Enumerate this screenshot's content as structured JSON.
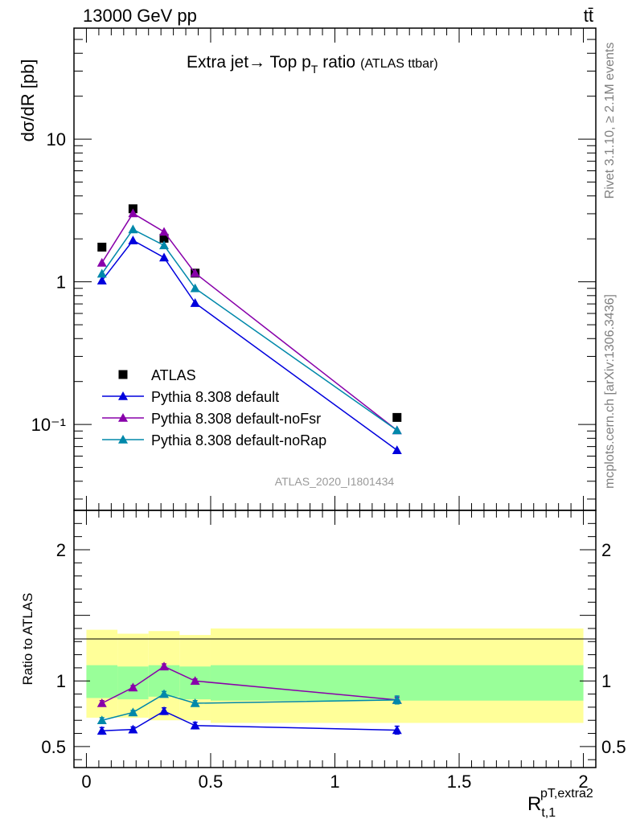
{
  "header": {
    "energy_label": "13000 GeV pp",
    "process_label": "tt̄"
  },
  "side_labels": {
    "rivet": "Rivet 3.1.10, ≥ 2.1M events",
    "mcplots": "mcplots.cern.ch [arXiv:1306.3436]"
  },
  "chart_data": [
    {
      "type": "line",
      "panel": "main",
      "title_main": "Extra jet→ Top p",
      "title_sub": "T",
      "title_after": " ratio",
      "title_small": "(ATLAS ttbar)",
      "ylabel": "dσ/dR [pb]",
      "y_scale": "log",
      "ylim": [
        0.025,
        60
      ],
      "xlim": [
        -0.05,
        2.05
      ],
      "y_ticks": [
        {
          "value": 10,
          "label": "10"
        },
        {
          "value": 1,
          "label": "1"
        },
        {
          "value": 0.1,
          "label": "10⁻¹"
        }
      ],
      "watermark": "ATLAS_2020_I1801434",
      "legend_position": "lower-left",
      "x": [
        0.0625,
        0.1875,
        0.3125,
        0.4375,
        1.25
      ],
      "series": [
        {
          "name": "ATLAS",
          "style": "square-markers",
          "color": "#000000",
          "values": [
            1.75,
            3.25,
            2.02,
            1.15,
            0.112
          ]
        },
        {
          "name": "Pythia 8.308 default",
          "style": "line-triangles",
          "color": "#0000dd",
          "values": [
            1.02,
            1.95,
            1.48,
            0.71,
            0.066
          ]
        },
        {
          "name": "Pythia 8.308 default-noFsr",
          "style": "line-triangles",
          "color": "#8800aa",
          "values": [
            1.36,
            3.02,
            2.24,
            1.15,
            0.091
          ]
        },
        {
          "name": "Pythia 8.308 default-noRap",
          "style": "line-triangles",
          "color": "#0088aa",
          "values": [
            1.14,
            2.33,
            1.8,
            0.9,
            0.091
          ]
        }
      ]
    },
    {
      "type": "line",
      "panel": "ratio",
      "ylabel": "Ratio to ATLAS",
      "ylim": [
        0.34,
        2.3
      ],
      "xlim": [
        -0.05,
        2.05
      ],
      "xlabel_main": "R",
      "xlabel_sub": "t,1",
      "xlabel_sup": "pT,extra2",
      "y_ticks": [
        {
          "value": 0.5,
          "label": "0.5"
        },
        {
          "value": 1,
          "label": "1"
        },
        {
          "value": 2,
          "label": "2"
        }
      ],
      "x_ticks": [
        {
          "value": 0,
          "label": "0"
        },
        {
          "value": 0.5,
          "label": "0.5"
        },
        {
          "value": 1,
          "label": "1"
        },
        {
          "value": 1.5,
          "label": "1.5"
        },
        {
          "value": 2,
          "label": "2"
        }
      ],
      "bands": {
        "bin_edges": [
          0,
          0.125,
          0.25,
          0.375,
          0.5,
          2.0
        ],
        "inner_color": "#99ff99",
        "outer_color": "#ffff99",
        "inner": [
          [
            0.87,
            1.12
          ],
          [
            0.86,
            1.11
          ],
          [
            0.88,
            1.12
          ],
          [
            0.86,
            1.11
          ],
          [
            0.85,
            1.12
          ]
        ],
        "outer": [
          [
            0.72,
            1.39
          ],
          [
            0.72,
            1.36
          ],
          [
            0.7,
            1.38
          ],
          [
            0.7,
            1.35
          ],
          [
            0.68,
            1.4
          ]
        ]
      },
      "x": [
        0.0625,
        0.1875,
        0.3125,
        0.4375,
        1.25
      ],
      "series": [
        {
          "name": "Pythia 8.308 default",
          "color": "#0000dd",
          "values": [
            0.62,
            0.63,
            0.77,
            0.66,
            0.625
          ],
          "errors": [
            0.025,
            0.02,
            0.025,
            0.025,
            0.03
          ]
        },
        {
          "name": "Pythia 8.308 default-noFsr",
          "color": "#8800aa",
          "values": [
            0.83,
            0.95,
            1.11,
            1.0,
            0.855
          ],
          "errors": [
            0.02,
            0.015,
            0.02,
            0.015,
            0.02
          ]
        },
        {
          "name": "Pythia 8.308 default-noRap",
          "color": "#0088aa",
          "values": [
            0.7,
            0.76,
            0.9,
            0.83,
            0.855
          ],
          "errors": [
            0.02,
            0.015,
            0.02,
            0.02,
            0.03
          ]
        }
      ]
    }
  ]
}
